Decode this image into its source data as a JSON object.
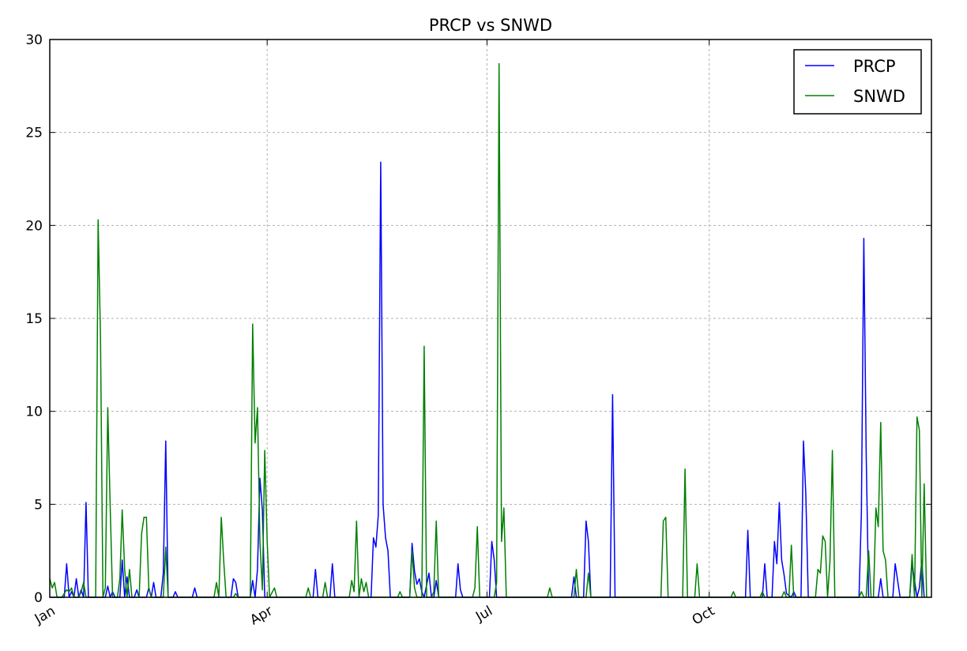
{
  "chart_data": {
    "type": "line",
    "title": "PRCP vs SNWD",
    "xlabel": "",
    "ylabel": "",
    "x_day_range": [
      1,
      366
    ],
    "xlim": [
      "Jan 1",
      "Dec 31"
    ],
    "ylim": [
      0,
      30
    ],
    "y_ticks": [
      0,
      5,
      10,
      15,
      20,
      25,
      30
    ],
    "x_ticks": [
      {
        "label": "Jan",
        "day": 1
      },
      {
        "label": "Apr",
        "day": 91
      },
      {
        "label": "Jul",
        "day": 182
      },
      {
        "label": "Oct",
        "day": 274
      }
    ],
    "grid": true,
    "legend_position": "top-right",
    "series": [
      {
        "name": "PRCP",
        "color": "#0000ff",
        "points": [
          [
            1,
            0
          ],
          [
            7,
            0
          ],
          [
            8,
            1.8
          ],
          [
            9,
            0
          ],
          [
            10,
            0.3
          ],
          [
            11,
            0
          ],
          [
            12,
            1
          ],
          [
            13,
            0
          ],
          [
            14,
            0.4
          ],
          [
            15,
            0
          ],
          [
            16,
            5.1
          ],
          [
            17,
            0
          ],
          [
            24,
            0
          ],
          [
            25,
            0.6
          ],
          [
            26,
            0
          ],
          [
            27,
            0.3
          ],
          [
            28,
            0
          ],
          [
            30,
            0
          ],
          [
            31,
            2
          ],
          [
            32,
            0
          ],
          [
            33,
            1.1
          ],
          [
            34,
            0
          ],
          [
            36,
            0
          ],
          [
            37,
            0.4
          ],
          [
            38,
            0
          ],
          [
            41,
            0
          ],
          [
            42,
            0.5
          ],
          [
            43,
            0
          ],
          [
            44,
            0.8
          ],
          [
            45,
            0
          ],
          [
            47,
            0
          ],
          [
            48,
            1.3
          ],
          [
            49,
            8.4
          ],
          [
            50,
            0
          ],
          [
            52,
            0
          ],
          [
            53,
            0.3
          ],
          [
            54,
            0
          ],
          [
            60,
            0
          ],
          [
            61,
            0.5
          ],
          [
            62,
            0
          ],
          [
            76,
            0
          ],
          [
            77,
            1
          ],
          [
            78,
            0.8
          ],
          [
            79,
            0
          ],
          [
            84,
            0
          ],
          [
            85,
            0.9
          ],
          [
            86,
            0
          ],
          [
            87,
            1.5
          ],
          [
            88,
            6.4
          ],
          [
            89,
            4.7
          ],
          [
            90,
            0
          ],
          [
            110,
            0
          ],
          [
            111,
            1.5
          ],
          [
            112,
            0
          ],
          [
            117,
            0
          ],
          [
            118,
            1.8
          ],
          [
            119,
            0
          ],
          [
            134,
            0
          ],
          [
            135,
            3.2
          ],
          [
            136,
            2.7
          ],
          [
            137,
            4.4
          ],
          [
            138,
            23.4
          ],
          [
            139,
            5
          ],
          [
            140,
            3.2
          ],
          [
            141,
            2.5
          ],
          [
            142,
            0
          ],
          [
            150,
            0
          ],
          [
            151,
            2.9
          ],
          [
            152,
            1.4
          ],
          [
            153,
            0.7
          ],
          [
            154,
            1
          ],
          [
            155,
            0.3
          ],
          [
            156,
            0
          ],
          [
            158,
            1.3
          ],
          [
            159,
            0
          ],
          [
            160,
            0
          ],
          [
            161,
            0.9
          ],
          [
            162,
            0
          ],
          [
            169,
            0
          ],
          [
            170,
            1.8
          ],
          [
            171,
            0.4
          ],
          [
            172,
            0
          ],
          [
            183,
            0
          ],
          [
            184,
            3
          ],
          [
            185,
            2
          ],
          [
            186,
            0
          ],
          [
            217,
            0
          ],
          [
            218,
            1.1
          ],
          [
            219,
            0
          ],
          [
            222,
            0
          ],
          [
            223,
            4.1
          ],
          [
            224,
            3
          ],
          [
            225,
            0
          ],
          [
            233,
            0
          ],
          [
            234,
            10.9
          ],
          [
            235,
            0
          ],
          [
            289,
            0
          ],
          [
            290,
            3.6
          ],
          [
            291,
            0
          ],
          [
            296,
            0
          ],
          [
            297,
            1.8
          ],
          [
            298,
            0
          ],
          [
            300,
            0
          ],
          [
            301,
            3
          ],
          [
            302,
            1.8
          ],
          [
            303,
            5.1
          ],
          [
            304,
            2
          ],
          [
            305,
            1.2
          ],
          [
            306,
            0.2
          ],
          [
            308,
            0
          ],
          [
            309,
            0.3
          ],
          [
            310,
            0
          ],
          [
            312,
            0
          ],
          [
            313,
            8.4
          ],
          [
            314,
            5.5
          ],
          [
            315,
            0
          ],
          [
            336,
            0
          ],
          [
            337,
            4.5
          ],
          [
            338,
            19.3
          ],
          [
            339,
            7.7
          ],
          [
            340,
            0
          ],
          [
            344,
            0
          ],
          [
            345,
            1
          ],
          [
            346,
            0
          ],
          [
            350,
            0
          ],
          [
            351,
            1.8
          ],
          [
            352,
            0.9
          ],
          [
            353,
            0
          ],
          [
            357,
            0
          ],
          [
            358,
            1.8
          ],
          [
            359,
            0.9
          ],
          [
            360,
            0
          ],
          [
            361,
            0.5
          ],
          [
            362,
            2
          ],
          [
            363,
            0
          ],
          [
            369,
            0
          ],
          [
            370,
            0.4
          ],
          [
            371,
            0
          ],
          [
            373,
            0
          ]
        ]
      },
      {
        "name": "SNWD",
        "color": "#008000",
        "points": [
          [
            1,
            1
          ],
          [
            2,
            0.5
          ],
          [
            3,
            0.8
          ],
          [
            4,
            0
          ],
          [
            6,
            0
          ],
          [
            7,
            0.2
          ],
          [
            8,
            0.4
          ],
          [
            9,
            0.3
          ],
          [
            10,
            0.5
          ],
          [
            11,
            0
          ],
          [
            13,
            0
          ],
          [
            14,
            0.3
          ],
          [
            15,
            0.8
          ],
          [
            16,
            0
          ],
          [
            20,
            0
          ],
          [
            21,
            20.3
          ],
          [
            22,
            14
          ],
          [
            23,
            0
          ],
          [
            24,
            0.5
          ],
          [
            25,
            10.2
          ],
          [
            26,
            5
          ],
          [
            27,
            0
          ],
          [
            29,
            0
          ],
          [
            30,
            1
          ],
          [
            31,
            4.7
          ],
          [
            32,
            1.5
          ],
          [
            33,
            0
          ],
          [
            34,
            1.5
          ],
          [
            35,
            0
          ],
          [
            38,
            0
          ],
          [
            39,
            3.4
          ],
          [
            40,
            4.3
          ],
          [
            41,
            4.3
          ],
          [
            42,
            0.5
          ],
          [
            43,
            0
          ],
          [
            48,
            0
          ],
          [
            49,
            2.7
          ],
          [
            50,
            0
          ],
          [
            69,
            0
          ],
          [
            70,
            0.8
          ],
          [
            71,
            0
          ],
          [
            72,
            4.3
          ],
          [
            73,
            2
          ],
          [
            74,
            0
          ],
          [
            77,
            0
          ],
          [
            78,
            0.2
          ],
          [
            79,
            0
          ],
          [
            84,
            0
          ],
          [
            85,
            14.7
          ],
          [
            86,
            8.3
          ],
          [
            87,
            10.2
          ],
          [
            88,
            3
          ],
          [
            89,
            0.4
          ],
          [
            90,
            7.9
          ],
          [
            91,
            3
          ],
          [
            92,
            0
          ],
          [
            94,
            0.5
          ],
          [
            95,
            0
          ],
          [
            107,
            0
          ],
          [
            108,
            0.5
          ],
          [
            109,
            0
          ],
          [
            114,
            0
          ],
          [
            115,
            0.8
          ],
          [
            116,
            0
          ],
          [
            125,
            0
          ],
          [
            126,
            0.9
          ],
          [
            127,
            0.3
          ],
          [
            128,
            4.1
          ],
          [
            129,
            0
          ],
          [
            130,
            1
          ],
          [
            131,
            0.3
          ],
          [
            132,
            0.8
          ],
          [
            133,
            0
          ],
          [
            145,
            0
          ],
          [
            146,
            0.3
          ],
          [
            147,
            0
          ],
          [
            150,
            0
          ],
          [
            151,
            2.5
          ],
          [
            152,
            0.5
          ],
          [
            153,
            0
          ],
          [
            155,
            0
          ],
          [
            156,
            13.5
          ],
          [
            157,
            0
          ],
          [
            159,
            0
          ],
          [
            160,
            0.3
          ],
          [
            161,
            4.1
          ],
          [
            162,
            0
          ],
          [
            176,
            0
          ],
          [
            177,
            0.5
          ],
          [
            178,
            3.8
          ],
          [
            179,
            0
          ],
          [
            185,
            0
          ],
          [
            186,
            0.8
          ],
          [
            187,
            28.7
          ],
          [
            188,
            3
          ],
          [
            189,
            4.8
          ],
          [
            190,
            0
          ],
          [
            207,
            0
          ],
          [
            208,
            0.5
          ],
          [
            209,
            0
          ],
          [
            218,
            0
          ],
          [
            219,
            1.5
          ],
          [
            220,
            0
          ],
          [
            223,
            0
          ],
          [
            224,
            1.3
          ],
          [
            225,
            0
          ],
          [
            254,
            0
          ],
          [
            255,
            4.1
          ],
          [
            256,
            4.3
          ],
          [
            257,
            0
          ],
          [
            263,
            0
          ],
          [
            264,
            6.9
          ],
          [
            265,
            0
          ],
          [
            268,
            0
          ],
          [
            269,
            1.8
          ],
          [
            270,
            0
          ],
          [
            283,
            0
          ],
          [
            284,
            0.3
          ],
          [
            285,
            0
          ],
          [
            295,
            0
          ],
          [
            296,
            0.3
          ],
          [
            297,
            0
          ],
          [
            304,
            0
          ],
          [
            305,
            0.3
          ],
          [
            306,
            0
          ],
          [
            307,
            0
          ],
          [
            308,
            2.8
          ],
          [
            309,
            0
          ],
          [
            318,
            0
          ],
          [
            319,
            1.5
          ],
          [
            320,
            1.3
          ],
          [
            321,
            3.3
          ],
          [
            322,
            3
          ],
          [
            323,
            0
          ],
          [
            324,
            2
          ],
          [
            325,
            7.9
          ],
          [
            326,
            0
          ],
          [
            336,
            0
          ],
          [
            337,
            0.3
          ],
          [
            338,
            0
          ],
          [
            339,
            0
          ],
          [
            340,
            2.5
          ],
          [
            341,
            0
          ],
          [
            342,
            0
          ],
          [
            343,
            4.8
          ],
          [
            344,
            3.8
          ],
          [
            345,
            9.4
          ],
          [
            346,
            2.5
          ],
          [
            347,
            2
          ],
          [
            348,
            0
          ],
          [
            357,
            0
          ],
          [
            358,
            2.3
          ],
          [
            359,
            0
          ],
          [
            360,
            9.7
          ],
          [
            361,
            9
          ],
          [
            362,
            0
          ],
          [
            363,
            6.1
          ],
          [
            364,
            0
          ],
          [
            372,
            0
          ],
          [
            373,
            1.3
          ],
          [
            374,
            0
          ],
          [
            375,
            0.5
          ]
        ]
      }
    ]
  }
}
